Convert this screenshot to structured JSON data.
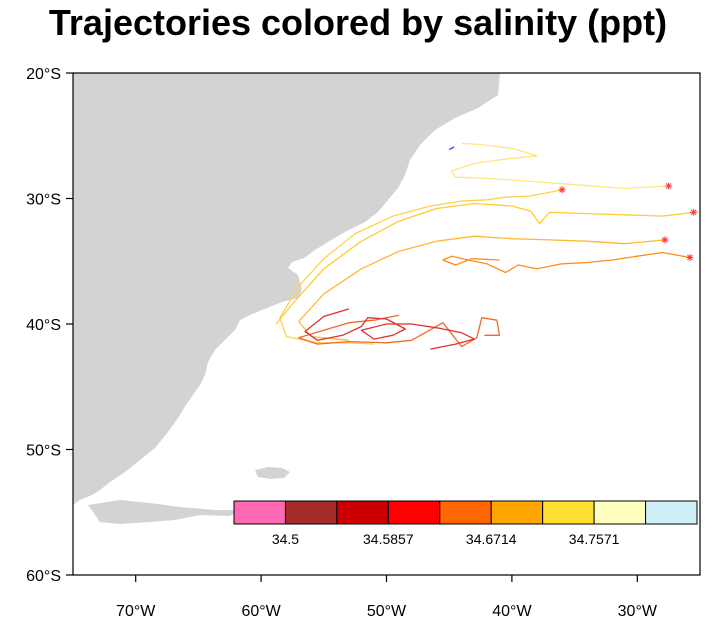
{
  "title": "Trajectories colored by salinity (ppt)",
  "map": {
    "lon_range": [
      -75,
      -25
    ],
    "lat_range": [
      -60,
      -20
    ],
    "land_color": "#d3d3d3",
    "ocean_color": "#ffffff",
    "lat_ticks": [
      {
        "value": -20,
        "label": "20°S"
      },
      {
        "value": -30,
        "label": "30°S"
      },
      {
        "value": -40,
        "label": "40°S"
      },
      {
        "value": -50,
        "label": "50°S"
      },
      {
        "value": -60,
        "label": "60°S"
      }
    ],
    "lon_ticks": [
      {
        "value": -70,
        "label": "70°W"
      },
      {
        "value": -60,
        "label": "60°W"
      },
      {
        "value": -50,
        "label": "50°W"
      },
      {
        "value": -40,
        "label": "40°W"
      },
      {
        "value": -30,
        "label": "30°W"
      }
    ]
  },
  "colorbar": {
    "colors": [
      "#ff69b4",
      "#a52a2a",
      "#cc0000",
      "#ff0000",
      "#ff6600",
      "#ffa500",
      "#ffe033",
      "#ffffc0",
      "#d0f0f8"
    ],
    "labels": [
      {
        "boundary": 1,
        "text": "34.5"
      },
      {
        "boundary": 3,
        "text": "34.5857"
      },
      {
        "boundary": 5,
        "text": "34.6714"
      },
      {
        "boundary": 7,
        "text": "34.7571"
      }
    ]
  },
  "trajectories": [
    {
      "name": "trajectory-1",
      "color": "#ffe680",
      "start_marker": true,
      "points": [
        [
          -27.5,
          -29
        ],
        [
          -31,
          -29.2
        ],
        [
          -35,
          -28.9
        ],
        [
          -39,
          -28.6
        ],
        [
          -42,
          -28.4
        ],
        [
          -44.5,
          -28.3
        ],
        [
          -44.8,
          -27.8
        ],
        [
          -43,
          -27.2
        ],
        [
          -40,
          -26.8
        ],
        [
          -38,
          -26.6
        ],
        [
          -40,
          -26
        ],
        [
          -42.5,
          -25.7
        ],
        [
          -44,
          -25.6
        ]
      ]
    },
    {
      "name": "trajectory-2",
      "color": "#ffd24d",
      "start_marker": true,
      "points": [
        [
          -36,
          -29.3
        ],
        [
          -38.5,
          -29.8
        ],
        [
          -40.5,
          -29.9
        ],
        [
          -42,
          -30.1
        ],
        [
          -44,
          -30.2
        ],
        [
          -46.5,
          -30.6
        ],
        [
          -49.5,
          -31.4
        ],
        [
          -52.5,
          -32.8
        ],
        [
          -55,
          -34.8
        ],
        [
          -57,
          -37
        ],
        [
          -58.5,
          -39.5
        ],
        [
          -58,
          -41
        ],
        [
          -55.5,
          -41.5
        ],
        [
          -53,
          -41.5
        ],
        [
          -51,
          -41.6
        ]
      ]
    },
    {
      "name": "trajectory-3",
      "color": "#ffcc33",
      "start_marker": true,
      "points": [
        [
          -25.5,
          -31.1
        ],
        [
          -28,
          -31.4
        ],
        [
          -31,
          -31.3
        ],
        [
          -34,
          -31.2
        ],
        [
          -37,
          -31.1
        ],
        [
          -37.8,
          -32
        ],
        [
          -38.5,
          -31
        ],
        [
          -40,
          -30.6
        ],
        [
          -43,
          -30.4
        ],
        [
          -46,
          -30.8
        ],
        [
          -49,
          -31.8
        ],
        [
          -52,
          -33.4
        ],
        [
          -55,
          -35.6
        ],
        [
          -57.5,
          -38.4
        ],
        [
          -58.8,
          -40
        ]
      ]
    },
    {
      "name": "trajectory-4",
      "color": "#ffb833",
      "start_marker": true,
      "points": [
        [
          -27.8,
          -33.3
        ],
        [
          -31,
          -33.6
        ],
        [
          -34,
          -33.4
        ],
        [
          -37,
          -33.3
        ],
        [
          -40,
          -33.2
        ],
        [
          -43,
          -33
        ],
        [
          -46,
          -33.4
        ],
        [
          -49,
          -34.2
        ],
        [
          -52,
          -35.6
        ],
        [
          -55,
          -37.6
        ],
        [
          -57,
          -39.8
        ],
        [
          -56,
          -41
        ],
        [
          -53,
          -41.3
        ]
      ]
    },
    {
      "name": "trajectory-5",
      "color": "#ff8c1a",
      "start_marker": true,
      "points": [
        [
          -25.8,
          -34.7
        ],
        [
          -28,
          -34.3
        ],
        [
          -30,
          -34.6
        ],
        [
          -32,
          -34.9
        ],
        [
          -34,
          -35.1
        ],
        [
          -36,
          -35.2
        ],
        [
          -38,
          -35.6
        ],
        [
          -39.5,
          -35.3
        ],
        [
          -40.5,
          -35.9
        ],
        [
          -42,
          -35.2
        ],
        [
          -43.5,
          -34.9
        ],
        [
          -44.8,
          -34.6
        ],
        [
          -45.5,
          -34.9
        ],
        [
          -44.5,
          -35.3
        ],
        [
          -43.2,
          -34.8
        ],
        [
          -41,
          -34.9
        ]
      ]
    },
    {
      "name": "trajectory-6",
      "color": "#f06a2a",
      "start_marker": false,
      "points": [
        [
          -49,
          -39.3
        ],
        [
          -51,
          -39.7
        ],
        [
          -53,
          -39.9
        ],
        [
          -55,
          -40.5
        ],
        [
          -57,
          -41.1
        ],
        [
          -55.5,
          -41.6
        ],
        [
          -53,
          -41.4
        ],
        [
          -50,
          -41.5
        ],
        [
          -48,
          -41.3
        ],
        [
          -45.5,
          -39.9
        ],
        [
          -44,
          -41.8
        ],
        [
          -42.8,
          -41.1
        ],
        [
          -42.4,
          -39.5
        ],
        [
          -41.2,
          -39.7
        ],
        [
          -41,
          -40.9
        ],
        [
          -42.2,
          -40.9
        ]
      ]
    },
    {
      "name": "trajectory-7",
      "color": "#e03030",
      "start_marker": false,
      "points": [
        [
          -53,
          -38.8
        ],
        [
          -55,
          -39.4
        ],
        [
          -56.5,
          -40.6
        ],
        [
          -55.5,
          -41.3
        ],
        [
          -53.5,
          -40.9
        ],
        [
          -52,
          -40.2
        ],
        [
          -51.5,
          -39.5
        ],
        [
          -50,
          -39.6
        ],
        [
          -48.5,
          -40.4
        ],
        [
          -49.5,
          -40.9
        ],
        [
          -51,
          -41.2
        ],
        [
          -52,
          -40.5
        ],
        [
          -50,
          -40
        ],
        [
          -48,
          -40
        ],
        [
          -46,
          -40.3
        ],
        [
          -44,
          -40.7
        ],
        [
          -43,
          -41.2
        ],
        [
          -44.5,
          -41.6
        ],
        [
          -46.5,
          -42
        ]
      ]
    },
    {
      "name": "trajectory-8",
      "color": "#4040ff",
      "start_marker": false,
      "points": [
        [
          -44.6,
          -25.9
        ],
        [
          -45,
          -26.1
        ]
      ]
    }
  ],
  "start_marker_color": "#ff3333"
}
